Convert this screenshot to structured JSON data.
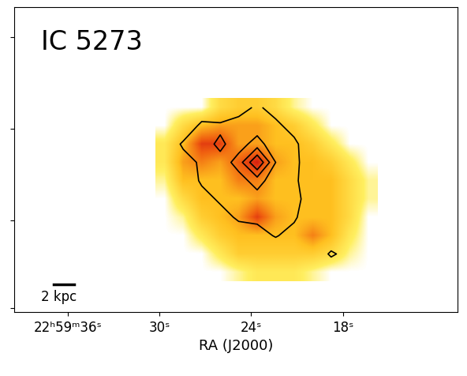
{
  "chart_data": {
    "type": "image",
    "title": "IC 5273",
    "x_label": "RA (J2000)",
    "scale_bar_label": "2 kpc",
    "xlim": [
      39.5,
      10.5
    ],
    "xticks": [
      {
        "value": 36,
        "label": "22ʰ59ᵐ36ˢ"
      },
      {
        "value": 30,
        "label": "30ˢ"
      },
      {
        "value": 24,
        "label": "24ˢ"
      },
      {
        "value": 18,
        "label": "18ˢ"
      }
    ],
    "ylim": [
      0,
      8
    ],
    "yticks": [
      0.1,
      2.4,
      4.8,
      7.2
    ],
    "tick_labels": "x",
    "cells": {
      "ra_range": [
        30.25,
        15.75
      ],
      "y_range": [
        5.6,
        0.8
      ],
      "color_range": [
        0,
        1
      ],
      "values": [
        [
          0,
          0,
          0,
          0.3,
          0.4,
          0.4,
          0.3,
          0.1,
          0,
          0,
          0,
          0
        ],
        [
          0,
          0.3,
          0.5,
          0.6,
          0.6,
          0.6,
          0.5,
          0.4,
          0.2,
          0,
          0,
          0
        ],
        [
          0.2,
          0.5,
          0.9,
          0.9,
          0.6,
          0.6,
          0.5,
          0.5,
          0.4,
          0.2,
          0,
          0
        ],
        [
          0.2,
          0.6,
          0.7,
          0.6,
          0.8,
          1.0,
          0.6,
          0.5,
          0.5,
          0.4,
          0.2,
          0
        ],
        [
          0.1,
          0.5,
          0.5,
          0.5,
          0.7,
          0.7,
          0.5,
          0.5,
          0.5,
          0.5,
          0.3,
          0.1
        ],
        [
          0,
          0.3,
          0.5,
          0.5,
          0.5,
          0.6,
          0.5,
          0.5,
          0.5,
          0.5,
          0.3,
          0.1
        ],
        [
          0,
          0.1,
          0.4,
          0.5,
          0.6,
          0.9,
          0.6,
          0.5,
          0.5,
          0.5,
          0.3,
          0
        ],
        [
          0,
          0,
          0.2,
          0.4,
          0.5,
          0.5,
          0.5,
          0.5,
          0.7,
          0.5,
          0.2,
          0
        ],
        [
          0,
          0,
          0,
          0.2,
          0.4,
          0.4,
          0.4,
          0.4,
          0.4,
          0.3,
          0.1,
          0
        ],
        [
          0,
          0,
          0,
          0,
          0.1,
          0.2,
          0.2,
          0.2,
          0.1,
          0,
          0,
          0
        ]
      ]
    },
    "contours": {
      "ra_range": [
        30.25,
        15.75
      ],
      "y_range": [
        5.6,
        0.8
      ],
      "levels": [
        1,
        2,
        3,
        4
      ],
      "values": [
        [
          0,
          0,
          0,
          0,
          0.5,
          1.2,
          0.5,
          0,
          0,
          0,
          0,
          0
        ],
        [
          0,
          0,
          1.3,
          1.2,
          1.5,
          1.4,
          1.3,
          0.5,
          0,
          0,
          0,
          0
        ],
        [
          0,
          1.2,
          1.4,
          0.8,
          1.5,
          2.5,
          1.2,
          1.3,
          0,
          0,
          0,
          0
        ],
        [
          0,
          0.5,
          1.2,
          1.3,
          2.5,
          5.0,
          2.0,
          1.2,
          0.5,
          0,
          0,
          0
        ],
        [
          0,
          0,
          1.2,
          1.4,
          1.5,
          2.5,
          1.3,
          1.2,
          0.3,
          0,
          0,
          0
        ],
        [
          0,
          0,
          0.5,
          1.2,
          1.3,
          1.5,
          1.4,
          1.3,
          0.5,
          0,
          0,
          0
        ],
        [
          0,
          0,
          0,
          0.5,
          1.2,
          1.3,
          1.4,
          1.2,
          0,
          0,
          0,
          0
        ],
        [
          0,
          0,
          0,
          0,
          0.3,
          0.5,
          1.1,
          0.5,
          0,
          0,
          0,
          0
        ],
        [
          0,
          0,
          0,
          0,
          0,
          0,
          0,
          0,
          0,
          1.2,
          0.5,
          0
        ],
        [
          0,
          0,
          0,
          0,
          0,
          0,
          0,
          0,
          0,
          0,
          0,
          0
        ]
      ]
    }
  }
}
